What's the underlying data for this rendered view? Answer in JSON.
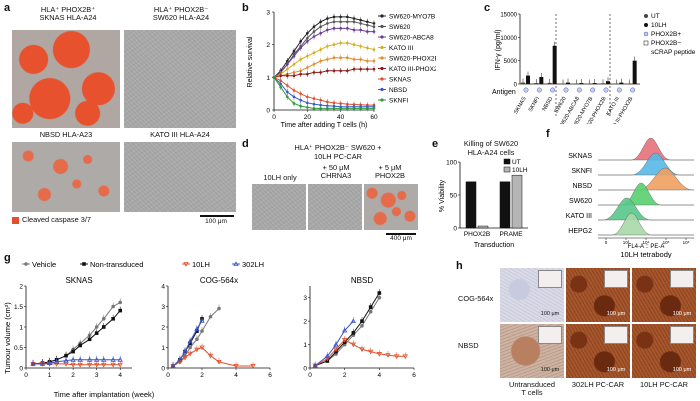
{
  "panels": {
    "a": {
      "label": "a",
      "cells": [
        {
          "title": "HLA⁺ PHOX2B⁺\nSKNAS HLA-A24"
        },
        {
          "title": "HLA⁺ PHOX2B⁻\nSW620 HLA-A24"
        },
        {
          "title": "NBSD HLA-A23"
        },
        {
          "title": "KATO III HLA-A24"
        }
      ],
      "legend": "Cleaved caspase 3/7",
      "scale_bar": "100 μm"
    },
    "b": {
      "label": "b",
      "ylabel": "Relative survival",
      "xlabel": "Time after adding T cells (h)"
    },
    "c": {
      "label": "c",
      "ylabel": "IFN-γ (pg/ml)",
      "antigen_label": "Antigen",
      "legend": [
        "UT",
        "10LH",
        "PHOX2B+",
        "PHOX2B−",
        "sCRAP peptide"
      ]
    },
    "d": {
      "label": "d",
      "title_line1": "HLA⁺ PHOX2B⁻ SW620 +",
      "title_line2": "10LH  PC-CAR",
      "cols": [
        "10LH only",
        "+ 50 μM\nCHRNA3",
        "+ 5 μM\nPHOX2B"
      ],
      "scale_bar": "400 μm"
    },
    "e": {
      "label": "e",
      "title_line1": "Killing of SW620",
      "title_line2": "HLA-A24 cells",
      "ylabel": "% Viability",
      "xlabel": "Transduction"
    },
    "f": {
      "label": "f",
      "xlabel": "FL4-A :: PE-A",
      "footer": "10LH tetrabody"
    },
    "g": {
      "label": "g",
      "ylabel": "Tumour volume (cm³)",
      "xlabel": "Time after implantation (week)"
    },
    "h": {
      "label": "h",
      "rows": [
        "COG-564x",
        "NBSD"
      ],
      "cols": [
        "Untransduced\nT cells",
        "302LH PC-CAR",
        "10LH PC-CAR"
      ],
      "scale_bar": "100 μm"
    }
  },
  "colors": {
    "black": "#111111",
    "red": "#e0502d",
    "blue": "#3a57c8",
    "gray": "#777777",
    "bar_gray": "#b5b5b5"
  },
  "chart_data": [
    {
      "id": "b",
      "type": "line",
      "title": "",
      "xlabel": "Time after adding T cells (h)",
      "ylabel": "Relative survival",
      "xlim": [
        0,
        60
      ],
      "ylim": [
        0,
        3
      ],
      "xticks": [
        0,
        20,
        40,
        60
      ],
      "yticks": [
        0,
        1,
        2,
        3
      ],
      "x": [
        0,
        4,
        8,
        12,
        16,
        20,
        24,
        28,
        32,
        36,
        40,
        44,
        48,
        52,
        56,
        60
      ],
      "series": [
        {
          "name": "SW620-MYO7B",
          "color": "#222222",
          "values": [
            1.0,
            1.2,
            1.5,
            1.8,
            2.1,
            2.35,
            2.55,
            2.7,
            2.8,
            2.85,
            2.85,
            2.85,
            2.8,
            2.75,
            2.7,
            2.65
          ]
        },
        {
          "name": "SW620",
          "color": "#555555",
          "values": [
            1.0,
            1.15,
            1.4,
            1.7,
            1.95,
            2.2,
            2.4,
            2.55,
            2.65,
            2.7,
            2.7,
            2.7,
            2.7,
            2.65,
            2.6,
            2.55
          ]
        },
        {
          "name": "SW620-ABCA8",
          "color": "#6a3d9a",
          "values": [
            1.0,
            1.15,
            1.4,
            1.65,
            1.9,
            2.1,
            2.25,
            2.35,
            2.45,
            2.5,
            2.5,
            2.5,
            2.45,
            2.45,
            2.4,
            2.4
          ]
        },
        {
          "name": "KATO III",
          "color": "#d4b020",
          "values": [
            1.0,
            1.1,
            1.25,
            1.4,
            1.55,
            1.65,
            1.75,
            1.85,
            1.95,
            2.0,
            2.05,
            2.05,
            2.0,
            1.95,
            1.9,
            1.85
          ]
        },
        {
          "name": "SW620-PHOX2B",
          "color": "#e08c2c",
          "values": [
            1.0,
            1.05,
            1.1,
            1.15,
            1.2,
            1.3,
            1.4,
            1.5,
            1.55,
            1.6,
            1.6,
            1.6,
            1.55,
            1.55,
            1.5,
            1.5
          ]
        },
        {
          "name": "KATO III-PHOX2B",
          "color": "#8b1a1a",
          "values": [
            1.0,
            1.05,
            1.05,
            1.05,
            1.1,
            1.1,
            1.15,
            1.15,
            1.2,
            1.2,
            1.2,
            1.2,
            1.25,
            1.25,
            1.25,
            1.25
          ]
        },
        {
          "name": "SKNAS",
          "color": "#e0502d",
          "values": [
            1.0,
            0.9,
            0.75,
            0.6,
            0.5,
            0.4,
            0.35,
            0.3,
            0.25,
            0.22,
            0.2,
            0.18,
            0.17,
            0.16,
            0.15,
            0.15
          ]
        },
        {
          "name": "NBSD",
          "color": "#3a57c8",
          "values": [
            1.0,
            0.8,
            0.55,
            0.4,
            0.3,
            0.22,
            0.18,
            0.15,
            0.13,
            0.12,
            0.1,
            0.1,
            0.1,
            0.1,
            0.1,
            0.1
          ]
        },
        {
          "name": "SKNFI",
          "color": "#2a9a3a",
          "values": [
            1.0,
            0.7,
            0.4,
            0.2,
            0.12,
            0.08,
            0.05,
            0.05,
            0.05,
            0.05,
            0.05,
            0.05,
            0.05,
            0.05,
            0.05,
            0.05
          ]
        }
      ]
    },
    {
      "id": "c",
      "type": "bar",
      "title": "",
      "ylabel": "IFN-γ (pg/ml)",
      "ylim": [
        0,
        15000
      ],
      "yticks": [
        0,
        5000,
        10000,
        15000
      ],
      "categories": [
        "SKNAS",
        "SKNFI",
        "NBSD",
        "SW620",
        "SW620-ABCA8",
        "SW620-MYO7B",
        "SW620-PHOX2B",
        "KATO III",
        "KATO III-PHOX2B"
      ],
      "series": [
        {
          "name": "UT",
          "values": [
            300,
            200,
            250,
            100,
            100,
            100,
            150,
            100,
            100
          ]
        },
        {
          "name": "10LH",
          "values": [
            1800,
            1500,
            8200,
            300,
            200,
            200,
            600,
            300,
            5000
          ]
        }
      ]
    },
    {
      "id": "e",
      "type": "bar",
      "title": "Killing of SW620 HLA-A24 cells",
      "xlabel": "Transduction",
      "ylabel": "% Viability",
      "ylim": [
        0,
        100
      ],
      "yticks": [
        0,
        50,
        100
      ],
      "categories": [
        "PHOX2B",
        "PRAME"
      ],
      "series": [
        {
          "name": "UT",
          "values": [
            70,
            70
          ]
        },
        {
          "name": "10LH",
          "values": [
            3,
            80
          ]
        }
      ]
    },
    {
      "id": "f",
      "type": "area",
      "title": "",
      "xlabel": "FL4-A :: PE-A",
      "categories": [
        "SKNAS",
        "SKNFI",
        "NBSD",
        "SW620",
        "KATO III",
        "HEPG2"
      ],
      "xticks": [
        "0",
        "10³",
        "10⁴",
        "10⁵",
        "10⁶"
      ],
      "series_colors": [
        "#e8707a",
        "#58b8e8",
        "#f0a060",
        "#58d070",
        "#58c888",
        "#a8d8a8"
      ]
    },
    {
      "id": "g-sknas",
      "type": "line",
      "title": "SKNAS",
      "xlabel": "Time after implantation (week)",
      "ylabel": "Tumour volume (cm³)",
      "xlim": [
        0,
        4.5
      ],
      "ylim": [
        0,
        2
      ],
      "xticks": [
        0,
        1,
        2,
        3,
        4
      ],
      "yticks": [
        0,
        0.5,
        1.0,
        1.5,
        2.0
      ],
      "legend": [
        "Vehicle",
        "Non-transduced",
        "10LH",
        "302LH"
      ],
      "series": [
        {
          "name": "Vehicle",
          "color": "#777777",
          "x": [
            0.3,
            0.7,
            1.0,
            1.3,
            1.7,
            2.0,
            2.3,
            2.7,
            3.0,
            3.3,
            3.7,
            4.0
          ],
          "values": [
            0.1,
            0.12,
            0.15,
            0.2,
            0.3,
            0.45,
            0.6,
            0.8,
            1.0,
            1.2,
            1.5,
            1.6
          ]
        },
        {
          "name": "Non-transduced",
          "color": "#111111",
          "x": [
            0.3,
            0.7,
            1.0,
            1.3,
            1.7,
            2.0,
            2.3,
            2.7,
            3.0,
            3.3,
            3.7,
            4.0
          ],
          "values": [
            0.1,
            0.12,
            0.15,
            0.2,
            0.3,
            0.4,
            0.55,
            0.7,
            0.85,
            1.0,
            1.2,
            1.4
          ]
        },
        {
          "name": "10LH",
          "color": "#e0502d",
          "x": [
            0.3,
            0.7,
            1.0,
            1.3,
            1.7,
            2.0,
            2.3,
            2.7,
            3.0,
            3.3,
            3.7,
            4.0
          ],
          "values": [
            0.1,
            0.1,
            0.1,
            0.1,
            0.1,
            0.08,
            0.08,
            0.08,
            0.08,
            0.08,
            0.08,
            0.08
          ]
        },
        {
          "name": "302LH",
          "color": "#3a57c8",
          "x": [
            0.3,
            0.7,
            1.0,
            1.3,
            1.7,
            2.0,
            2.3,
            2.7,
            3.0,
            3.3,
            3.7,
            4.0
          ],
          "values": [
            0.1,
            0.1,
            0.12,
            0.15,
            0.18,
            0.2,
            0.2,
            0.2,
            0.2,
            0.2,
            0.2,
            0.2
          ]
        }
      ]
    },
    {
      "id": "g-cog",
      "type": "line",
      "title": "COG-564x",
      "xlabel": "Time after implantation (week)",
      "xlim": [
        0,
        6
      ],
      "ylim": [
        0,
        4
      ],
      "xticks": [
        0,
        2,
        4,
        6
      ],
      "yticks": [
        0,
        1,
        2,
        3,
        4
      ],
      "series": [
        {
          "name": "Vehicle",
          "color": "#777777",
          "x": [
            0.3,
            0.7,
            1.0,
            1.3,
            1.7,
            2.0,
            2.5,
            3.0
          ],
          "values": [
            0.1,
            0.3,
            0.6,
            1.0,
            1.4,
            1.8,
            2.5,
            2.9
          ]
        },
        {
          "name": "Non-transduced",
          "color": "#111111",
          "x": [
            0.3,
            0.7,
            1.0,
            1.3,
            1.7,
            2.0
          ],
          "values": [
            0.1,
            0.4,
            0.8,
            1.2,
            1.8,
            2.4
          ]
        },
        {
          "name": "10LH",
          "color": "#e0502d",
          "x": [
            0.3,
            0.7,
            1.0,
            1.3,
            1.7,
            2.0,
            2.5,
            3.0,
            4.0,
            5.0
          ],
          "values": [
            0.1,
            0.3,
            0.5,
            0.7,
            0.9,
            1.0,
            0.6,
            0.3,
            0.1,
            0.1
          ]
        },
        {
          "name": "302LH",
          "color": "#3a57c8",
          "x": [
            0.3,
            0.7,
            1.0,
            1.3,
            1.7,
            2.0
          ],
          "values": [
            0.1,
            0.4,
            0.8,
            1.3,
            1.9,
            2.3
          ]
        }
      ]
    },
    {
      "id": "g-nbsd",
      "type": "line",
      "title": "NBSD",
      "xlabel": "Time after implantation (week)",
      "xlim": [
        0,
        6
      ],
      "ylim": [
        0,
        3.5
      ],
      "xticks": [
        0,
        2,
        4,
        6
      ],
      "yticks": [
        0,
        1,
        2,
        3
      ],
      "series": [
        {
          "name": "Vehicle",
          "color": "#777777",
          "x": [
            0.3,
            1.0,
            1.5,
            2.0,
            2.5,
            3.0,
            3.5,
            4.0
          ],
          "values": [
            0.1,
            0.3,
            0.6,
            1.0,
            1.4,
            1.8,
            2.4,
            3.0
          ]
        },
        {
          "name": "Non-transduced",
          "color": "#111111",
          "x": [
            0.3,
            1.0,
            1.5,
            2.0,
            2.5,
            3.0,
            3.5,
            4.0
          ],
          "values": [
            0.1,
            0.3,
            0.7,
            1.1,
            1.5,
            2.0,
            2.6,
            3.2
          ]
        },
        {
          "name": "10LH",
          "color": "#e0502d",
          "x": [
            0.3,
            1.0,
            1.5,
            2.0,
            2.5,
            3.0,
            3.5,
            4.0,
            4.5,
            5.0,
            5.5
          ],
          "values": [
            0.1,
            0.4,
            0.8,
            1.2,
            1.0,
            0.8,
            0.7,
            0.6,
            0.55,
            0.5,
            0.5
          ]
        },
        {
          "name": "302LH",
          "color": "#3a57c8",
          "x": [
            0.3,
            1.0,
            1.5,
            2.0,
            2.5
          ],
          "values": [
            0.1,
            0.5,
            1.0,
            1.6,
            2.0
          ]
        }
      ]
    }
  ]
}
